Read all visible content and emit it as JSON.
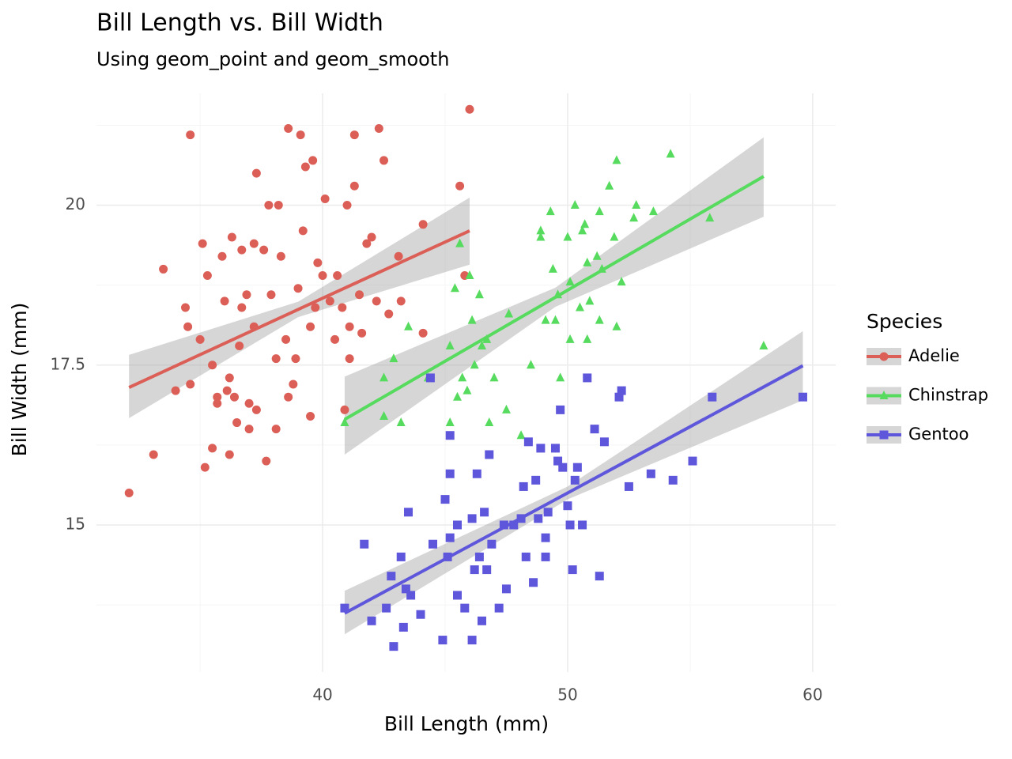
{
  "chart_data": {
    "type": "scatter",
    "title": "Bill Length vs. Bill Width",
    "subtitle": "Using geom_point and geom_smooth",
    "x_label": "Bill Length (mm)",
    "y_label": "Bill Width (mm)",
    "legend_title": "Species",
    "legend_position": "right",
    "grid": true,
    "xlim": [
      30.77,
      60.94
    ],
    "ylim": [
      12.7,
      21.75
    ],
    "xticks": [
      40,
      50,
      60
    ],
    "yticks": [
      15,
      17.5,
      20
    ],
    "minor_xticks": [
      35,
      45,
      55
    ],
    "minor_yticks": [
      13.75,
      16.25,
      18.75,
      21.25
    ],
    "series": [
      {
        "name": "Adelie",
        "color": "#db5f57",
        "marker": "circle",
        "x": [
          32.1,
          33.1,
          33.5,
          34.0,
          34.4,
          34.5,
          34.6,
          34.6,
          35.0,
          35.1,
          35.2,
          35.3,
          35.5,
          35.5,
          35.7,
          35.7,
          35.9,
          36.0,
          36.1,
          36.2,
          36.2,
          36.3,
          36.4,
          36.5,
          36.6,
          36.7,
          36.7,
          36.9,
          37.0,
          37.0,
          37.2,
          37.3,
          37.2,
          37.3,
          37.6,
          37.7,
          37.8,
          37.9,
          38.1,
          38.1,
          38.2,
          38.3,
          38.5,
          38.6,
          38.6,
          38.8,
          38.9,
          39.0,
          39.1,
          39.2,
          39.3,
          39.5,
          39.6,
          39.5,
          39.7,
          39.8,
          40.0,
          40.1,
          40.3,
          40.5,
          40.6,
          40.8,
          40.9,
          41.0,
          41.1,
          41.1,
          41.3,
          41.3,
          41.5,
          41.6,
          41.8,
          42.0,
          42.2,
          42.3,
          42.5,
          42.7,
          43.1,
          43.2,
          44.1,
          44.1,
          45.6,
          45.8,
          46.0
        ],
        "values": [
          15.5,
          16.1,
          19.0,
          17.1,
          18.4,
          18.1,
          17.2,
          21.1,
          17.9,
          19.4,
          15.9,
          18.9,
          16.2,
          17.5,
          17.0,
          16.9,
          19.2,
          18.5,
          17.1,
          17.3,
          16.1,
          19.5,
          17.0,
          16.6,
          17.8,
          18.4,
          19.3,
          18.6,
          16.9,
          16.5,
          19.4,
          20.5,
          18.1,
          16.8,
          19.3,
          16.0,
          20.0,
          18.6,
          16.5,
          17.6,
          20.0,
          19.2,
          17.9,
          17.0,
          21.2,
          17.2,
          17.6,
          18.7,
          21.1,
          19.6,
          20.6,
          18.1,
          20.7,
          16.7,
          18.4,
          19.1,
          18.9,
          20.1,
          18.5,
          17.9,
          18.9,
          18.4,
          16.8,
          20.0,
          17.6,
          18.1,
          21.1,
          20.3,
          18.6,
          18.0,
          19.4,
          19.5,
          18.5,
          21.2,
          20.7,
          18.3,
          19.2,
          18.5,
          18.0,
          19.7,
          20.3,
          18.9,
          21.5
        ],
        "smooth": {
          "x": [
            32.1,
            39,
            46
          ],
          "fit": [
            17.15,
            18.37,
            19.6
          ],
          "lower": [
            16.67,
            18.25,
            19.07
          ],
          "upper": [
            17.66,
            18.49,
            20.12
          ]
        }
      },
      {
        "name": "Chinstrap",
        "color": "#57db5f",
        "marker": "triangle",
        "x": [
          40.9,
          42.5,
          42.5,
          43.2,
          43.5,
          42.9,
          44.3,
          45.2,
          45.2,
          45.4,
          45.5,
          45.6,
          45.7,
          45.9,
          46.0,
          46.1,
          46.2,
          46.4,
          46.5,
          46.7,
          46.8,
          47.0,
          47.5,
          47.6,
          48.1,
          48.5,
          48.9,
          48.9,
          49.1,
          49.3,
          49.4,
          49.5,
          49.6,
          49.7,
          50.0,
          50.1,
          50.1,
          50.3,
          50.5,
          50.6,
          50.7,
          50.8,
          50.8,
          50.9,
          51.2,
          51.3,
          51.3,
          51.4,
          51.7,
          51.9,
          52.0,
          52.0,
          52.2,
          52.7,
          52.8,
          53.5,
          54.2,
          55.8,
          58.0
        ],
        "values": [
          16.6,
          16.7,
          17.3,
          16.6,
          18.1,
          17.6,
          17.3,
          16.6,
          17.8,
          18.7,
          17.0,
          19.4,
          17.3,
          17.1,
          18.9,
          18.2,
          17.5,
          18.6,
          17.8,
          17.9,
          16.6,
          17.3,
          16.8,
          18.3,
          16.4,
          17.5,
          19.6,
          19.5,
          18.2,
          19.9,
          19.0,
          18.2,
          18.6,
          17.3,
          19.5,
          17.9,
          18.8,
          20.0,
          18.4,
          19.6,
          19.7,
          19.1,
          17.9,
          18.5,
          19.2,
          19.9,
          18.2,
          19.0,
          20.3,
          19.5,
          20.7,
          18.1,
          18.8,
          19.8,
          20.0,
          19.9,
          20.8,
          19.8,
          17.8
        ],
        "smooth": {
          "x": [
            40.9,
            49.5,
            58
          ],
          "fit": [
            16.65,
            18.56,
            20.45
          ],
          "lower": [
            16.1,
            18.41,
            19.82
          ],
          "upper": [
            17.32,
            18.71,
            21.06
          ]
        }
      },
      {
        "name": "Gentoo",
        "color": "#5f57db",
        "marker": "square",
        "x": [
          40.9,
          41.7,
          42.0,
          42.6,
          42.8,
          42.9,
          43.2,
          43.3,
          43.4,
          43.5,
          43.6,
          44.0,
          44.4,
          44.5,
          44.9,
          45.0,
          45.1,
          45.2,
          45.2,
          45.2,
          45.5,
          45.5,
          45.8,
          46.1,
          46.1,
          46.2,
          46.3,
          46.4,
          46.5,
          46.6,
          46.7,
          46.8,
          46.9,
          47.2,
          47.4,
          47.5,
          47.8,
          48.1,
          48.2,
          48.3,
          48.4,
          48.6,
          48.7,
          48.8,
          48.9,
          49.1,
          49.1,
          49.2,
          49.5,
          49.6,
          49.7,
          49.8,
          50.0,
          50.1,
          50.2,
          50.3,
          50.4,
          50.6,
          50.8,
          51.1,
          51.3,
          51.5,
          52.1,
          52.2,
          52.5,
          53.4,
          54.3,
          55.1,
          55.9,
          59.6
        ],
        "values": [
          13.7,
          14.7,
          13.5,
          13.7,
          14.2,
          13.1,
          14.5,
          13.4,
          14.0,
          15.2,
          13.9,
          13.6,
          17.3,
          14.7,
          13.2,
          15.4,
          14.5,
          16.4,
          15.8,
          14.8,
          15.0,
          13.9,
          13.7,
          13.2,
          15.1,
          14.3,
          15.8,
          14.5,
          13.5,
          15.2,
          14.3,
          16.1,
          14.7,
          13.7,
          15.0,
          14.0,
          15.0,
          15.1,
          15.6,
          14.5,
          16.3,
          14.1,
          15.7,
          15.1,
          16.2,
          14.5,
          14.8,
          15.2,
          16.2,
          16.0,
          16.8,
          15.9,
          15.3,
          15.0,
          14.3,
          15.7,
          15.9,
          15.0,
          17.3,
          16.5,
          14.2,
          16.3,
          17.0,
          17.1,
          15.6,
          15.8,
          15.7,
          16.0,
          17.0,
          17.0
        ],
        "smooth": {
          "x": [
            40.9,
            50,
            59.6
          ],
          "fit": [
            13.62,
            15.5,
            17.49
          ],
          "lower": [
            13.29,
            15.4,
            16.95
          ],
          "upper": [
            13.97,
            15.6,
            18.03
          ]
        }
      }
    ]
  }
}
